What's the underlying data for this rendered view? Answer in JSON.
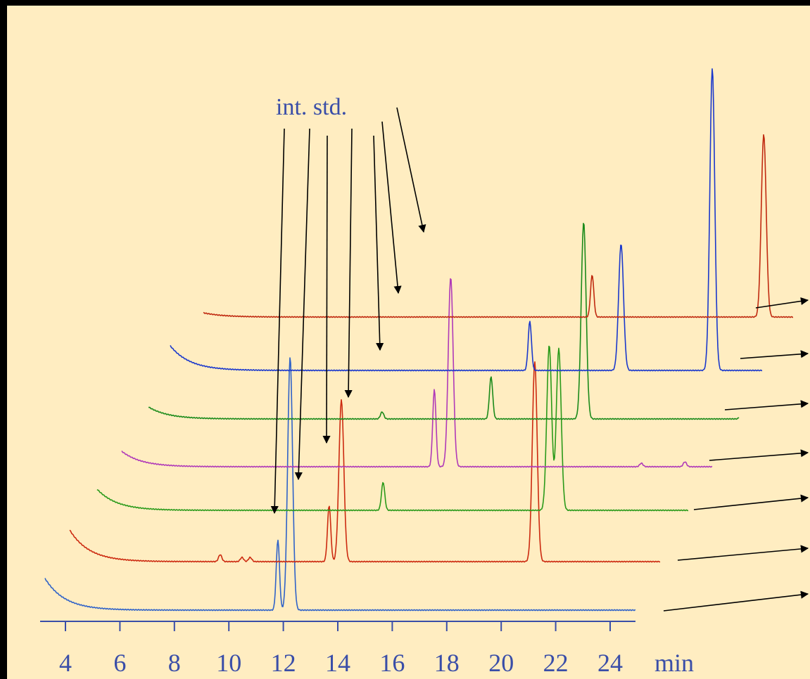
{
  "colors": {
    "background": "#ffedc1",
    "frame": "#000000",
    "axis": "#3a4ea8",
    "text": "#3a4ea8",
    "arrow": "#000000"
  },
  "chart_data": {
    "type": "line",
    "title": "",
    "xlabel": "min",
    "ylabel": "",
    "xlim": [
      3.3,
      25.2
    ],
    "x_ticks": [
      4,
      6,
      8,
      10,
      12,
      14,
      16,
      18,
      20,
      22,
      24
    ],
    "x_tick_labels": [
      "4",
      "6",
      "8",
      "10",
      "12",
      "14",
      "16",
      "18",
      "20",
      "22",
      "24"
    ],
    "grid": false,
    "layout": "waterfall",
    "annotation": {
      "text": "int. std.",
      "points_to": [
        11.8,
        12.7,
        13.7,
        14.6,
        15.7,
        16.4,
        17.5
      ]
    },
    "series": [
      {
        "color": "#2f62c8",
        "baseline": 0,
        "decay_amp": 0.45,
        "peaks": [
          {
            "x": 11.8,
            "h": 1.0
          },
          {
            "x": 12.25,
            "h": 3.6
          }
        ]
      },
      {
        "color": "#cc2a10",
        "baseline": 0,
        "decay_amp": 0.45,
        "peaks": [
          {
            "x": 8.7,
            "h": 0.1
          },
          {
            "x": 9.5,
            "h": 0.06
          },
          {
            "x": 9.8,
            "h": 0.06
          },
          {
            "x": 12.7,
            "h": 0.8
          },
          {
            "x": 13.15,
            "h": 2.3
          },
          {
            "x": 20.25,
            "h": 2.85
          }
        ]
      },
      {
        "color": "#2a9a1a",
        "baseline": 0,
        "decay_amp": 0.3,
        "peaks": [
          {
            "x": 13.7,
            "h": 0.4
          },
          {
            "x": 19.8,
            "h": 2.35
          },
          {
            "x": 20.15,
            "h": 2.3
          }
        ]
      },
      {
        "color": "#b03ab8",
        "baseline": 0,
        "decay_amp": 0.22,
        "peaks": [
          {
            "x": 14.6,
            "h": 1.1
          },
          {
            "x": 15.2,
            "h": 2.7
          },
          {
            "x": 22.2,
            "h": 0.05
          },
          {
            "x": 23.8,
            "h": 0.07
          }
        ]
      },
      {
        "color": "#1a8a1a",
        "baseline": 0,
        "decay_amp": 0.17,
        "peaks": [
          {
            "x": 11.7,
            "h": 0.1
          },
          {
            "x": 15.7,
            "h": 0.6
          },
          {
            "x": 19.1,
            "h": 2.8
          },
          {
            "x": 24.9,
            "h": 0.1
          },
          {
            "x": 25.6,
            "h": 1.7
          }
        ]
      },
      {
        "color": "#1a38cc",
        "baseline": 0,
        "decay_amp": 0.35,
        "peaks": [
          {
            "x": 16.4,
            "h": 0.7
          },
          {
            "x": 19.75,
            "h": 1.8
          },
          {
            "x": 23.1,
            "h": 4.3
          }
        ]
      },
      {
        "color": "#c02a10",
        "baseline": 0,
        "decay_amp": 0.06,
        "peaks": [
          {
            "x": 17.5,
            "h": 0.6
          },
          {
            "x": 23.8,
            "h": 2.6
          },
          {
            "x": 27.2,
            "h": 0.15
          },
          {
            "x": 28.3,
            "h": 0.03
          }
        ]
      }
    ]
  }
}
